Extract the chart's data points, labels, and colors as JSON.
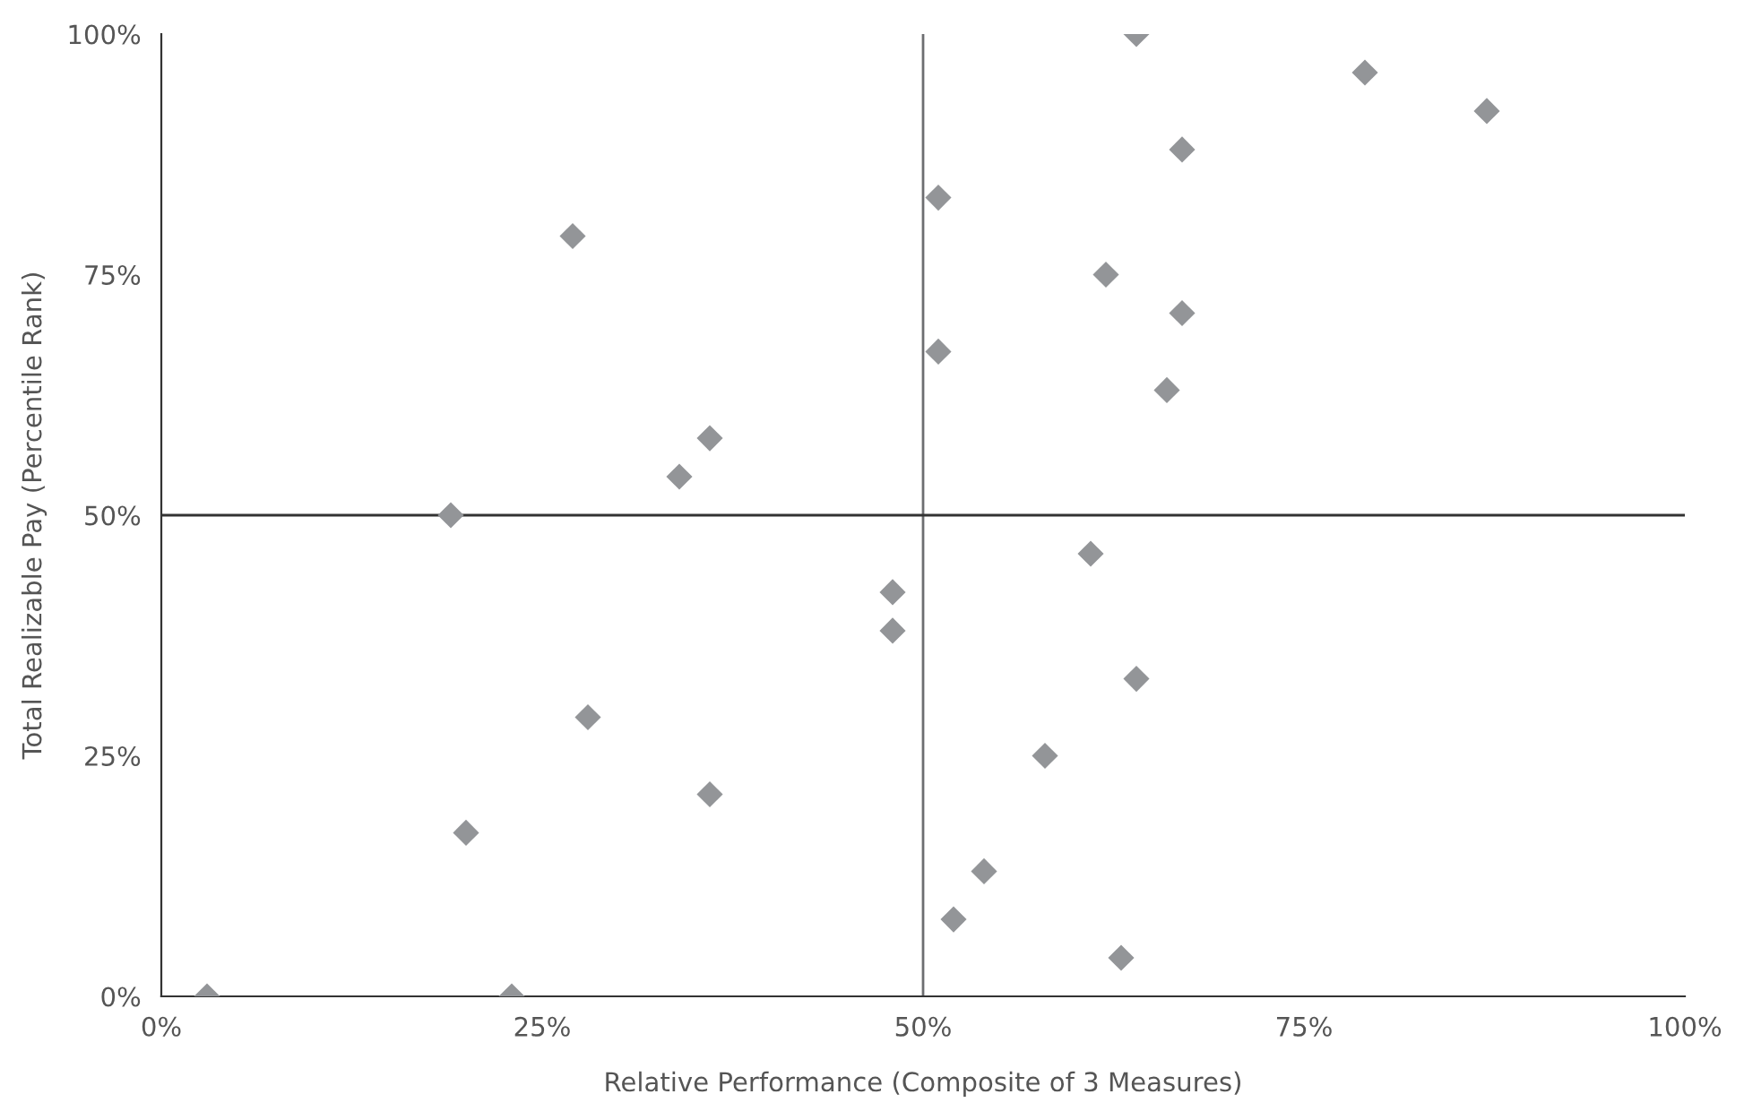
{
  "chart_data": {
    "type": "scatter",
    "xlabel": "Relative Performance (Composite of 3 Measures)",
    "ylabel": "Total Realizable Pay (Percentile Rank)",
    "x": [
      3,
      23,
      19,
      20,
      27,
      28,
      34,
      36,
      36,
      48,
      48,
      51,
      51,
      52,
      54,
      58,
      61,
      62,
      63,
      64,
      64,
      66,
      67,
      67,
      79,
      87
    ],
    "series": [
      {
        "color": "#939598",
        "values": [
          0,
          0,
          50,
          17,
          79,
          29,
          54,
          58,
          21,
          42,
          38,
          83,
          67,
          8,
          13,
          25,
          46,
          75,
          4,
          100,
          33,
          63,
          88,
          71,
          96,
          92
        ]
      }
    ],
    "marker": "diamond",
    "xlim": [
      0,
      100
    ],
    "ylim": [
      0,
      100
    ],
    "xticks": [
      {
        "value": 0,
        "label": "0%"
      },
      {
        "value": 25,
        "label": "25%"
      },
      {
        "value": 50,
        "label": "50%"
      },
      {
        "value": 75,
        "label": "75%"
      },
      {
        "value": 100,
        "label": "100%"
      }
    ],
    "yticks": [
      {
        "value": 0,
        "label": "0%"
      },
      {
        "value": 25,
        "label": "25%"
      },
      {
        "value": 50,
        "label": "50%"
      },
      {
        "value": 75,
        "label": "75%"
      },
      {
        "value": 100,
        "label": "100%"
      }
    ],
    "ref_lines": [
      {
        "axis": "x",
        "value": 50,
        "color": "#6d6e71"
      },
      {
        "axis": "y",
        "value": 50,
        "color": "#333333"
      }
    ],
    "grid": false,
    "legend": false
  }
}
